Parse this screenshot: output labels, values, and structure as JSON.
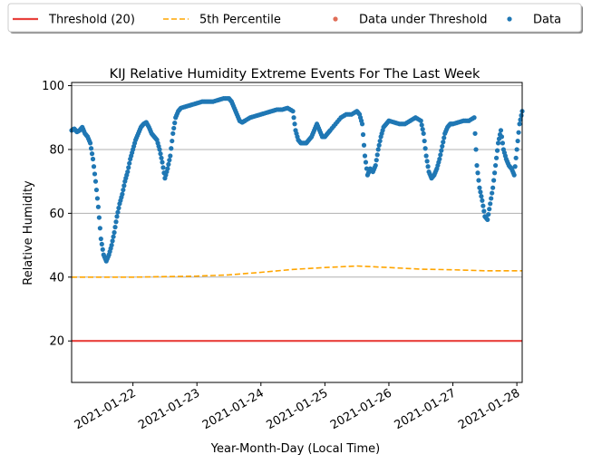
{
  "chart_data": {
    "type": "scatter",
    "title": "KIJ Relative Humidity Extreme Events For The Last Week",
    "xlabel": "Year-Month-Day (Local Time)",
    "ylabel": "Relative Humidity",
    "xlim": [
      "2021-01-21T01:00",
      "2021-01-28T02:00"
    ],
    "ylim": [
      7,
      101
    ],
    "x_ticks": [
      "2021-01-22",
      "2021-01-23",
      "2021-01-24",
      "2021-01-25",
      "2021-01-26",
      "2021-01-27",
      "2021-01-28"
    ],
    "y_ticks": [
      20,
      40,
      60,
      80,
      100
    ],
    "grid": "y",
    "legend_position": "top",
    "colors": {
      "threshold": "#e8413c",
      "percentile": "#ffa500",
      "under": "#e06d57",
      "data": "#1f77b4"
    },
    "legend": [
      {
        "label": "Threshold (20)",
        "kind": "line",
        "color": "#e8413c"
      },
      {
        "label": "5th Percentile",
        "kind": "dashed",
        "color": "#ffa500"
      },
      {
        "label": "Data under Threshold",
        "kind": "dot",
        "color": "#e06d57"
      },
      {
        "label": "Data",
        "kind": "dot",
        "color": "#1f77b4"
      }
    ],
    "series": [
      {
        "name": "Threshold (20)",
        "kind": "line",
        "points": [
          [
            "2021-01-21T01:00",
            20
          ],
          [
            "2021-01-28T02:00",
            20
          ]
        ]
      },
      {
        "name": "5th Percentile",
        "kind": "dashed",
        "points": [
          [
            "2021-01-21T01:00",
            40
          ],
          [
            "2021-01-22T00:00",
            40
          ],
          [
            "2021-01-23T00:00",
            40.3
          ],
          [
            "2021-01-23T12:00",
            40.7
          ],
          [
            "2021-01-24T00:00",
            41.5
          ],
          [
            "2021-01-24T12:00",
            42.4
          ],
          [
            "2021-01-25T00:00",
            43
          ],
          [
            "2021-01-25T12:00",
            43.5
          ],
          [
            "2021-01-26T00:00",
            43
          ],
          [
            "2021-01-26T12:00",
            42.5
          ],
          [
            "2021-01-27T00:00",
            42.3
          ],
          [
            "2021-01-27T12:00",
            42
          ],
          [
            "2021-01-28T02:00",
            42
          ]
        ]
      },
      {
        "name": "Data under Threshold",
        "kind": "dot",
        "points": []
      },
      {
        "name": "Data",
        "kind": "dot",
        "points": [
          [
            "2021-01-21T01:00",
            86
          ],
          [
            "2021-01-21T02:00",
            86.5
          ],
          [
            "2021-01-21T03:00",
            85.5
          ],
          [
            "2021-01-21T04:00",
            86
          ],
          [
            "2021-01-21T05:00",
            87
          ],
          [
            "2021-01-21T06:00",
            85
          ],
          [
            "2021-01-21T07:00",
            84
          ],
          [
            "2021-01-21T08:00",
            82
          ],
          [
            "2021-01-21T09:00",
            77
          ],
          [
            "2021-01-21T10:00",
            70
          ],
          [
            "2021-01-21T11:00",
            62
          ],
          [
            "2021-01-21T12:00",
            52
          ],
          [
            "2021-01-21T13:00",
            47
          ],
          [
            "2021-01-21T14:00",
            45
          ],
          [
            "2021-01-21T15:00",
            47
          ],
          [
            "2021-01-21T16:00",
            50
          ],
          [
            "2021-01-21T17:00",
            54
          ],
          [
            "2021-01-21T18:00",
            59
          ],
          [
            "2021-01-21T19:00",
            63
          ],
          [
            "2021-01-21T20:00",
            66
          ],
          [
            "2021-01-21T21:00",
            70
          ],
          [
            "2021-01-21T22:00",
            73
          ],
          [
            "2021-01-21T23:00",
            77
          ],
          [
            "2021-01-22T00:00",
            80
          ],
          [
            "2021-01-22T01:00",
            83
          ],
          [
            "2021-01-22T02:00",
            85
          ],
          [
            "2021-01-22T03:00",
            87
          ],
          [
            "2021-01-22T04:00",
            88
          ],
          [
            "2021-01-22T05:00",
            88.5
          ],
          [
            "2021-01-22T06:00",
            87
          ],
          [
            "2021-01-22T07:00",
            85
          ],
          [
            "2021-01-22T08:00",
            84
          ],
          [
            "2021-01-22T09:00",
            83
          ],
          [
            "2021-01-22T10:00",
            80
          ],
          [
            "2021-01-22T11:00",
            76
          ],
          [
            "2021-01-22T12:00",
            71
          ],
          [
            "2021-01-22T13:00",
            74
          ],
          [
            "2021-01-22T14:00",
            78
          ],
          [
            "2021-01-22T15:00",
            85
          ],
          [
            "2021-01-22T16:00",
            90
          ],
          [
            "2021-01-22T17:00",
            92
          ],
          [
            "2021-01-22T18:00",
            93
          ],
          [
            "2021-01-22T20:00",
            93.5
          ],
          [
            "2021-01-22T22:00",
            94
          ],
          [
            "2021-01-23T00:00",
            94.5
          ],
          [
            "2021-01-23T02:00",
            95
          ],
          [
            "2021-01-23T04:00",
            95
          ],
          [
            "2021-01-23T06:00",
            95
          ],
          [
            "2021-01-23T08:00",
            95.5
          ],
          [
            "2021-01-23T10:00",
            96
          ],
          [
            "2021-01-23T12:00",
            96
          ],
          [
            "2021-01-23T13:00",
            95
          ],
          [
            "2021-01-23T14:00",
            93
          ],
          [
            "2021-01-23T15:00",
            91
          ],
          [
            "2021-01-23T16:00",
            89
          ],
          [
            "2021-01-23T17:00",
            88.5
          ],
          [
            "2021-01-23T18:00",
            89
          ],
          [
            "2021-01-23T20:00",
            90
          ],
          [
            "2021-01-23T22:00",
            90.5
          ],
          [
            "2021-01-24T00:00",
            91
          ],
          [
            "2021-01-24T02:00",
            91.5
          ],
          [
            "2021-01-24T04:00",
            92
          ],
          [
            "2021-01-24T06:00",
            92.5
          ],
          [
            "2021-01-24T08:00",
            92.5
          ],
          [
            "2021-01-24T10:00",
            93
          ],
          [
            "2021-01-24T12:00",
            92
          ],
          [
            "2021-01-24T13:00",
            86
          ],
          [
            "2021-01-24T14:00",
            83
          ],
          [
            "2021-01-24T15:00",
            82
          ],
          [
            "2021-01-24T16:00",
            82
          ],
          [
            "2021-01-24T17:00",
            82
          ],
          [
            "2021-01-24T18:00",
            83
          ],
          [
            "2021-01-24T19:00",
            84
          ],
          [
            "2021-01-24T20:00",
            86
          ],
          [
            "2021-01-24T21:00",
            88
          ],
          [
            "2021-01-24T22:00",
            86
          ],
          [
            "2021-01-24T23:00",
            84
          ],
          [
            "2021-01-25T00:00",
            84
          ],
          [
            "2021-01-25T01:00",
            85
          ],
          [
            "2021-01-25T02:00",
            86
          ],
          [
            "2021-01-25T04:00",
            88
          ],
          [
            "2021-01-25T06:00",
            90
          ],
          [
            "2021-01-25T08:00",
            91
          ],
          [
            "2021-01-25T10:00",
            91
          ],
          [
            "2021-01-25T12:00",
            92
          ],
          [
            "2021-01-25T13:00",
            91
          ],
          [
            "2021-01-25T14:00",
            88
          ],
          [
            "2021-01-25T15:00",
            78
          ],
          [
            "2021-01-25T16:00",
            72
          ],
          [
            "2021-01-25T17:00",
            74
          ],
          [
            "2021-01-25T18:00",
            73
          ],
          [
            "2021-01-25T19:00",
            75
          ],
          [
            "2021-01-25T20:00",
            80
          ],
          [
            "2021-01-25T21:00",
            84
          ],
          [
            "2021-01-25T22:00",
            87
          ],
          [
            "2021-01-25T23:00",
            88
          ],
          [
            "2021-01-26T00:00",
            89
          ],
          [
            "2021-01-26T02:00",
            88.5
          ],
          [
            "2021-01-26T04:00",
            88
          ],
          [
            "2021-01-26T06:00",
            88
          ],
          [
            "2021-01-26T08:00",
            89
          ],
          [
            "2021-01-26T10:00",
            90
          ],
          [
            "2021-01-26T12:00",
            89
          ],
          [
            "2021-01-26T13:00",
            85
          ],
          [
            "2021-01-26T14:00",
            78
          ],
          [
            "2021-01-26T15:00",
            73
          ],
          [
            "2021-01-26T16:00",
            71
          ],
          [
            "2021-01-26T17:00",
            72
          ],
          [
            "2021-01-26T18:00",
            74
          ],
          [
            "2021-01-26T19:00",
            77
          ],
          [
            "2021-01-26T20:00",
            81
          ],
          [
            "2021-01-26T21:00",
            85
          ],
          [
            "2021-01-26T22:00",
            87
          ],
          [
            "2021-01-26T23:00",
            88
          ],
          [
            "2021-01-27T00:00",
            88
          ],
          [
            "2021-01-27T02:00",
            88.5
          ],
          [
            "2021-01-27T04:00",
            89
          ],
          [
            "2021-01-27T06:00",
            89
          ],
          [
            "2021-01-27T08:00",
            90
          ],
          [
            "2021-01-27T09:00",
            75
          ],
          [
            "2021-01-27T10:00",
            68
          ],
          [
            "2021-01-27T11:00",
            64
          ],
          [
            "2021-01-27T12:00",
            59
          ],
          [
            "2021-01-27T13:00",
            58
          ],
          [
            "2021-01-27T14:00",
            63
          ],
          [
            "2021-01-27T15:00",
            68
          ],
          [
            "2021-01-27T16:00",
            75
          ],
          [
            "2021-01-27T17:00",
            82
          ],
          [
            "2021-01-27T18:00",
            86
          ],
          [
            "2021-01-27T19:00",
            80
          ],
          [
            "2021-01-27T20:00",
            77
          ],
          [
            "2021-01-27T21:00",
            75
          ],
          [
            "2021-01-27T22:00",
            74
          ],
          [
            "2021-01-27T23:00",
            72
          ],
          [
            "2021-01-28T00:00",
            80
          ],
          [
            "2021-01-28T01:00",
            88
          ],
          [
            "2021-01-28T02:00",
            92
          ]
        ]
      }
    ]
  }
}
